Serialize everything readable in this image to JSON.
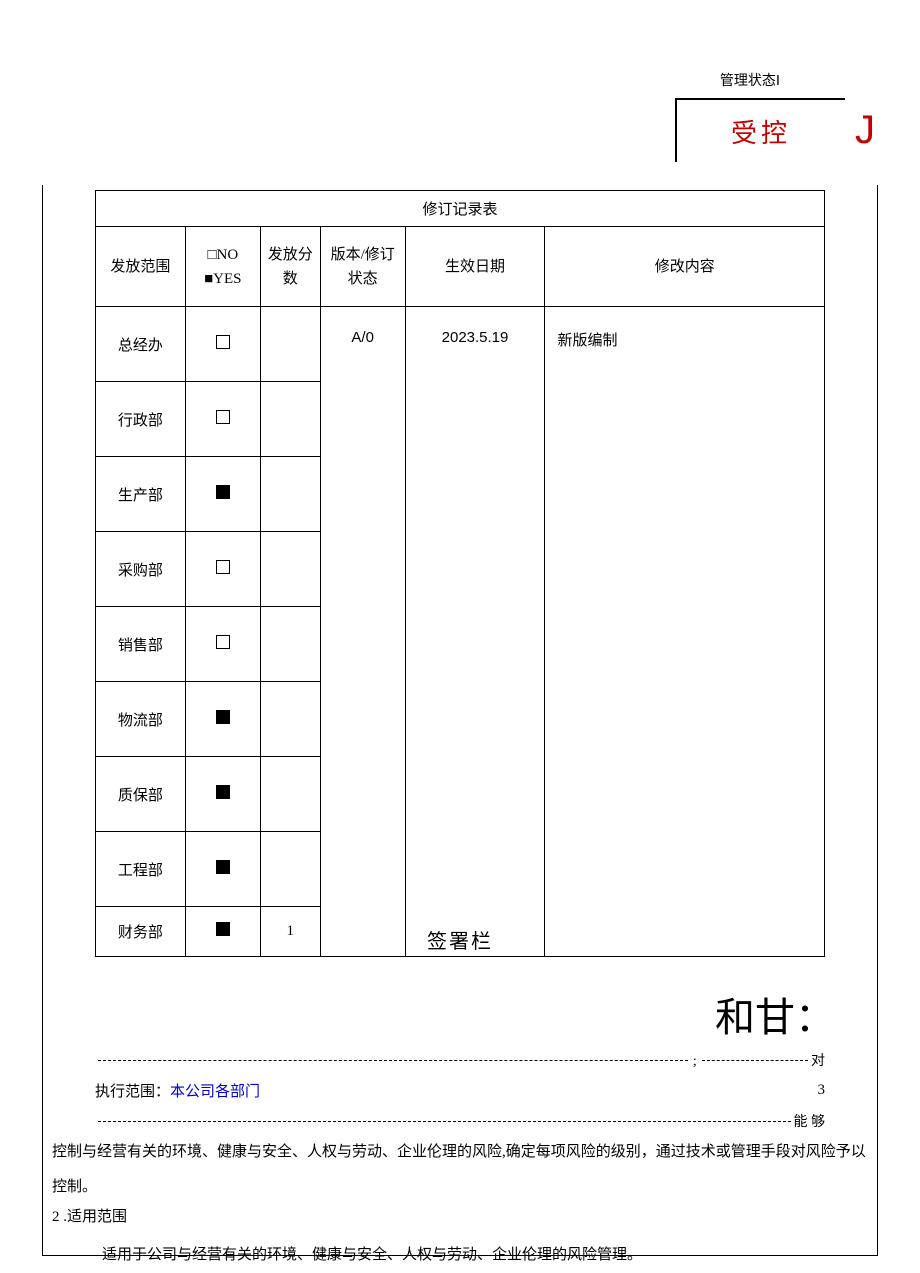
{
  "status": {
    "label": "管理状态Ⅰ",
    "text": "受控",
    "mark": "J"
  },
  "table": {
    "title": "修订记录表",
    "headers": {
      "scope": "发放范围",
      "yn_no": "□NO",
      "yn_yes": "■YES",
      "score": "发放分数",
      "version": "版本/修订状态",
      "date": "生效日期",
      "content": "修改内容"
    },
    "version_val": "A/0",
    "date_val": "2023.5.19",
    "content_val": "新版编制",
    "rows": [
      {
        "dept": "总经办",
        "filled": false,
        "score": ""
      },
      {
        "dept": "行政部",
        "filled": false,
        "score": ""
      },
      {
        "dept": "生产部",
        "filled": true,
        "score": ""
      },
      {
        "dept": "采购部",
        "filled": false,
        "score": ""
      },
      {
        "dept": "销售部",
        "filled": false,
        "score": ""
      },
      {
        "dept": "物流部",
        "filled": true,
        "score": ""
      },
      {
        "dept": "质保部",
        "filled": true,
        "score": ""
      },
      {
        "dept": "工程部",
        "filled": true,
        "score": ""
      },
      {
        "dept": "财务部",
        "filled": true,
        "score": "1"
      }
    ]
  },
  "signature": {
    "label": "签署栏",
    "hegan": "和甘："
  },
  "dashed": {
    "suffix1": "对",
    "exec_label": "执行范围：",
    "exec_value": "本公司各部门",
    "exec_num": "3",
    "suffix2": "能  够"
  },
  "body": {
    "para1": "控制与经营有关的环境、健康与安全、人权与劳动、企业伦理的风险,确定每项风险的级别，通过技术或管理手段对风险予以控制。",
    "section": "2  .适用范围",
    "para2": "适用于公司与经营有关的环境、健康与安全、人权与劳动、企业伦理的风险管理。"
  },
  "colors": {
    "red": "#c00000",
    "blue": "#0000cc",
    "black": "#000000",
    "bg": "#ffffff"
  }
}
